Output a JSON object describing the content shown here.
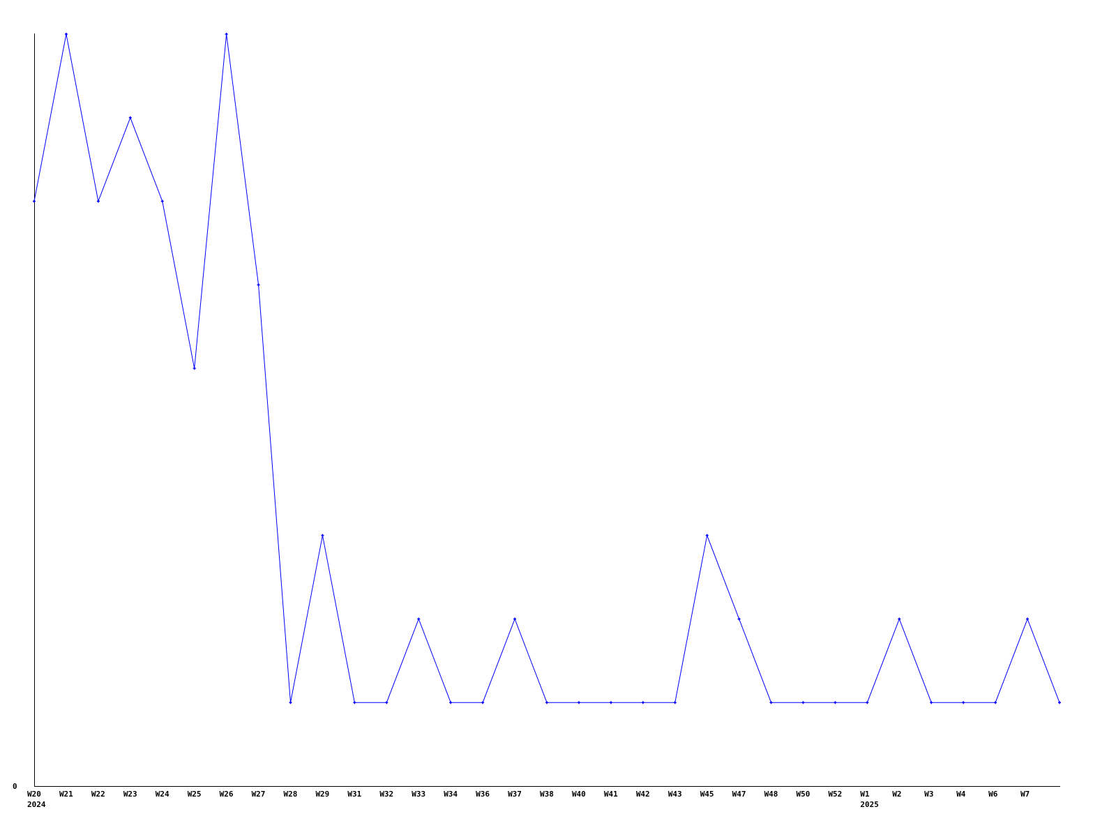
{
  "chart_data": {
    "type": "line",
    "title": "",
    "xlabel": "",
    "ylabel": "",
    "categories": [
      "W20",
      "W21",
      "W22",
      "W23",
      "W24",
      "W25",
      "W26",
      "W27",
      "W28",
      "W29",
      "W31",
      "W32",
      "W33",
      "W34",
      "W36",
      "W37",
      "W38",
      "W40",
      "W41",
      "W42",
      "W43",
      "W45",
      "W47",
      "W48",
      "W50",
      "W52",
      "W1",
      "W2",
      "W3",
      "W4",
      "W6",
      "W7",
      ""
    ],
    "year_labels": [
      {
        "category_index": 0,
        "label": "2024"
      },
      {
        "category_index": 26,
        "label": "2025"
      }
    ],
    "y_tick_labels": [
      "0"
    ],
    "ylim": [
      0,
      9
    ],
    "grid": false,
    "series": [
      {
        "color": "#0000ff",
        "values": [
          7,
          9,
          7,
          8,
          7,
          5,
          9,
          6,
          1,
          3,
          1,
          1,
          2,
          1,
          1,
          2,
          1,
          1,
          1,
          1,
          1,
          3,
          2,
          1,
          1,
          1,
          1,
          2,
          1,
          1,
          1,
          2,
          1
        ]
      }
    ]
  }
}
